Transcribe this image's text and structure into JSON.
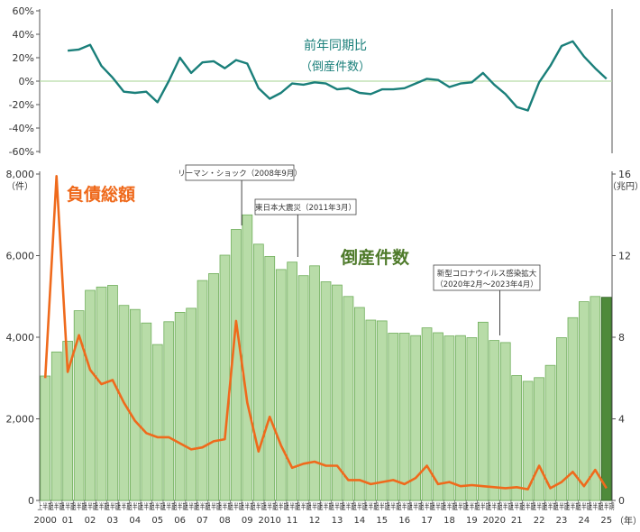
{
  "chart_data": [
    {
      "type": "line",
      "title": "前年同期比",
      "subtitle": "（倒産件数）",
      "ylim": [
        -60,
        60
      ],
      "yticks": [
        "60%",
        "40%",
        "20%",
        "0%",
        "-20%",
        "-40%",
        "-60%"
      ],
      "yticks_values": [
        60,
        40,
        20,
        0,
        -20,
        -40,
        -60
      ],
      "color": "#1a7f7a",
      "start_index": 2,
      "values": [
        26,
        27,
        31,
        13,
        3,
        -9,
        -10,
        -9,
        -18,
        0,
        20,
        7,
        16,
        17,
        11,
        18,
        15,
        -6,
        -15,
        -10,
        -2,
        -3,
        -1,
        -2,
        -7,
        -6,
        -10,
        -11,
        -7,
        -7,
        -6,
        -2,
        2,
        1,
        -5,
        -2,
        -1,
        7,
        -3,
        -11,
        -22,
        -25,
        -1,
        13,
        30,
        34,
        21,
        11,
        2
      ]
    },
    {
      "type": "bar",
      "series_name": "倒産件数",
      "left_unit": "（件）",
      "right_unit": "（兆円）",
      "ylim": [
        0,
        8000
      ],
      "yticks": [
        "8,000",
        "6,000",
        "4,000",
        "2,000",
        "0"
      ],
      "yticks_values": [
        8000,
        6000,
        4000,
        2000,
        0
      ],
      "y2lim": [
        0,
        16
      ],
      "y2ticks": [
        "16",
        "12",
        "8",
        "4",
        "0"
      ],
      "y2ticks_values": [
        16,
        12,
        8,
        4,
        0
      ],
      "bar_color": "#b8dca8",
      "bar_highlight_color": "#4e8a3a",
      "values": [
        3050,
        3640,
        3900,
        4650,
        5150,
        5230,
        5270,
        4780,
        4680,
        4350,
        3820,
        4380,
        4610,
        4710,
        5390,
        5560,
        6010,
        6640,
        7000,
        6280,
        5980,
        5660,
        5840,
        5510,
        5750,
        5360,
        5280,
        5000,
        4730,
        4420,
        4400,
        4100,
        4100,
        4040,
        4230,
        4110,
        4030,
        4040,
        3990,
        4370,
        3920,
        3870,
        3060,
        2920,
        3010,
        3310,
        3990,
        4480,
        4870,
        5000,
        4980
      ],
      "debt_series_name": "負債総額",
      "debt_color": "#ef6a1c",
      "debt_values": [
        6.0,
        15.9,
        6.3,
        8.1,
        6.4,
        5.7,
        5.9,
        4.8,
        3.9,
        3.3,
        3.1,
        3.1,
        2.8,
        2.5,
        2.6,
        2.9,
        3.0,
        8.8,
        4.8,
        2.4,
        4.1,
        2.7,
        1.6,
        1.8,
        1.9,
        1.7,
        1.7,
        1.0,
        1.0,
        0.8,
        0.9,
        1.0,
        0.8,
        1.1,
        1.7,
        0.8,
        0.9,
        0.7,
        0.75,
        0.7,
        0.65,
        0.6,
        0.65,
        0.55,
        1.7,
        0.6,
        0.9,
        1.4,
        0.7,
        1.5,
        0.6
      ],
      "half_label": "上半期",
      "x_year_labels": [
        {
          "index": 0,
          "label": "2000"
        },
        {
          "index": 2,
          "label": "01"
        },
        {
          "index": 4,
          "label": "02"
        },
        {
          "index": 6,
          "label": "03"
        },
        {
          "index": 8,
          "label": "04"
        },
        {
          "index": 10,
          "label": "05"
        },
        {
          "index": 12,
          "label": "06"
        },
        {
          "index": 14,
          "label": "07"
        },
        {
          "index": 16,
          "label": "08"
        },
        {
          "index": 18,
          "label": "09"
        },
        {
          "index": 20,
          "label": "2010"
        },
        {
          "index": 22,
          "label": "11"
        },
        {
          "index": 24,
          "label": "12"
        },
        {
          "index": 26,
          "label": "13"
        },
        {
          "index": 28,
          "label": "14"
        },
        {
          "index": 30,
          "label": "15"
        },
        {
          "index": 32,
          "label": "16"
        },
        {
          "index": 34,
          "label": "17"
        },
        {
          "index": 36,
          "label": "18"
        },
        {
          "index": 38,
          "label": "19"
        },
        {
          "index": 40,
          "label": "2020"
        },
        {
          "index": 42,
          "label": "21"
        },
        {
          "index": 44,
          "label": "22"
        },
        {
          "index": 46,
          "label": "23"
        },
        {
          "index": 48,
          "label": "24"
        },
        {
          "index": 50,
          "label": "25"
        }
      ],
      "x_unit": "（年）",
      "annotations": [
        {
          "text": "リーマン・ショック（2008年9月）",
          "index": 17.5
        },
        {
          "text": "東日本大震災（2011年3月）",
          "index": 22.5
        },
        {
          "text": "新型コロナウイルス感染拡大",
          "text2": "（2020年2月〜2023年4月）",
          "index": 40.5
        }
      ]
    }
  ]
}
